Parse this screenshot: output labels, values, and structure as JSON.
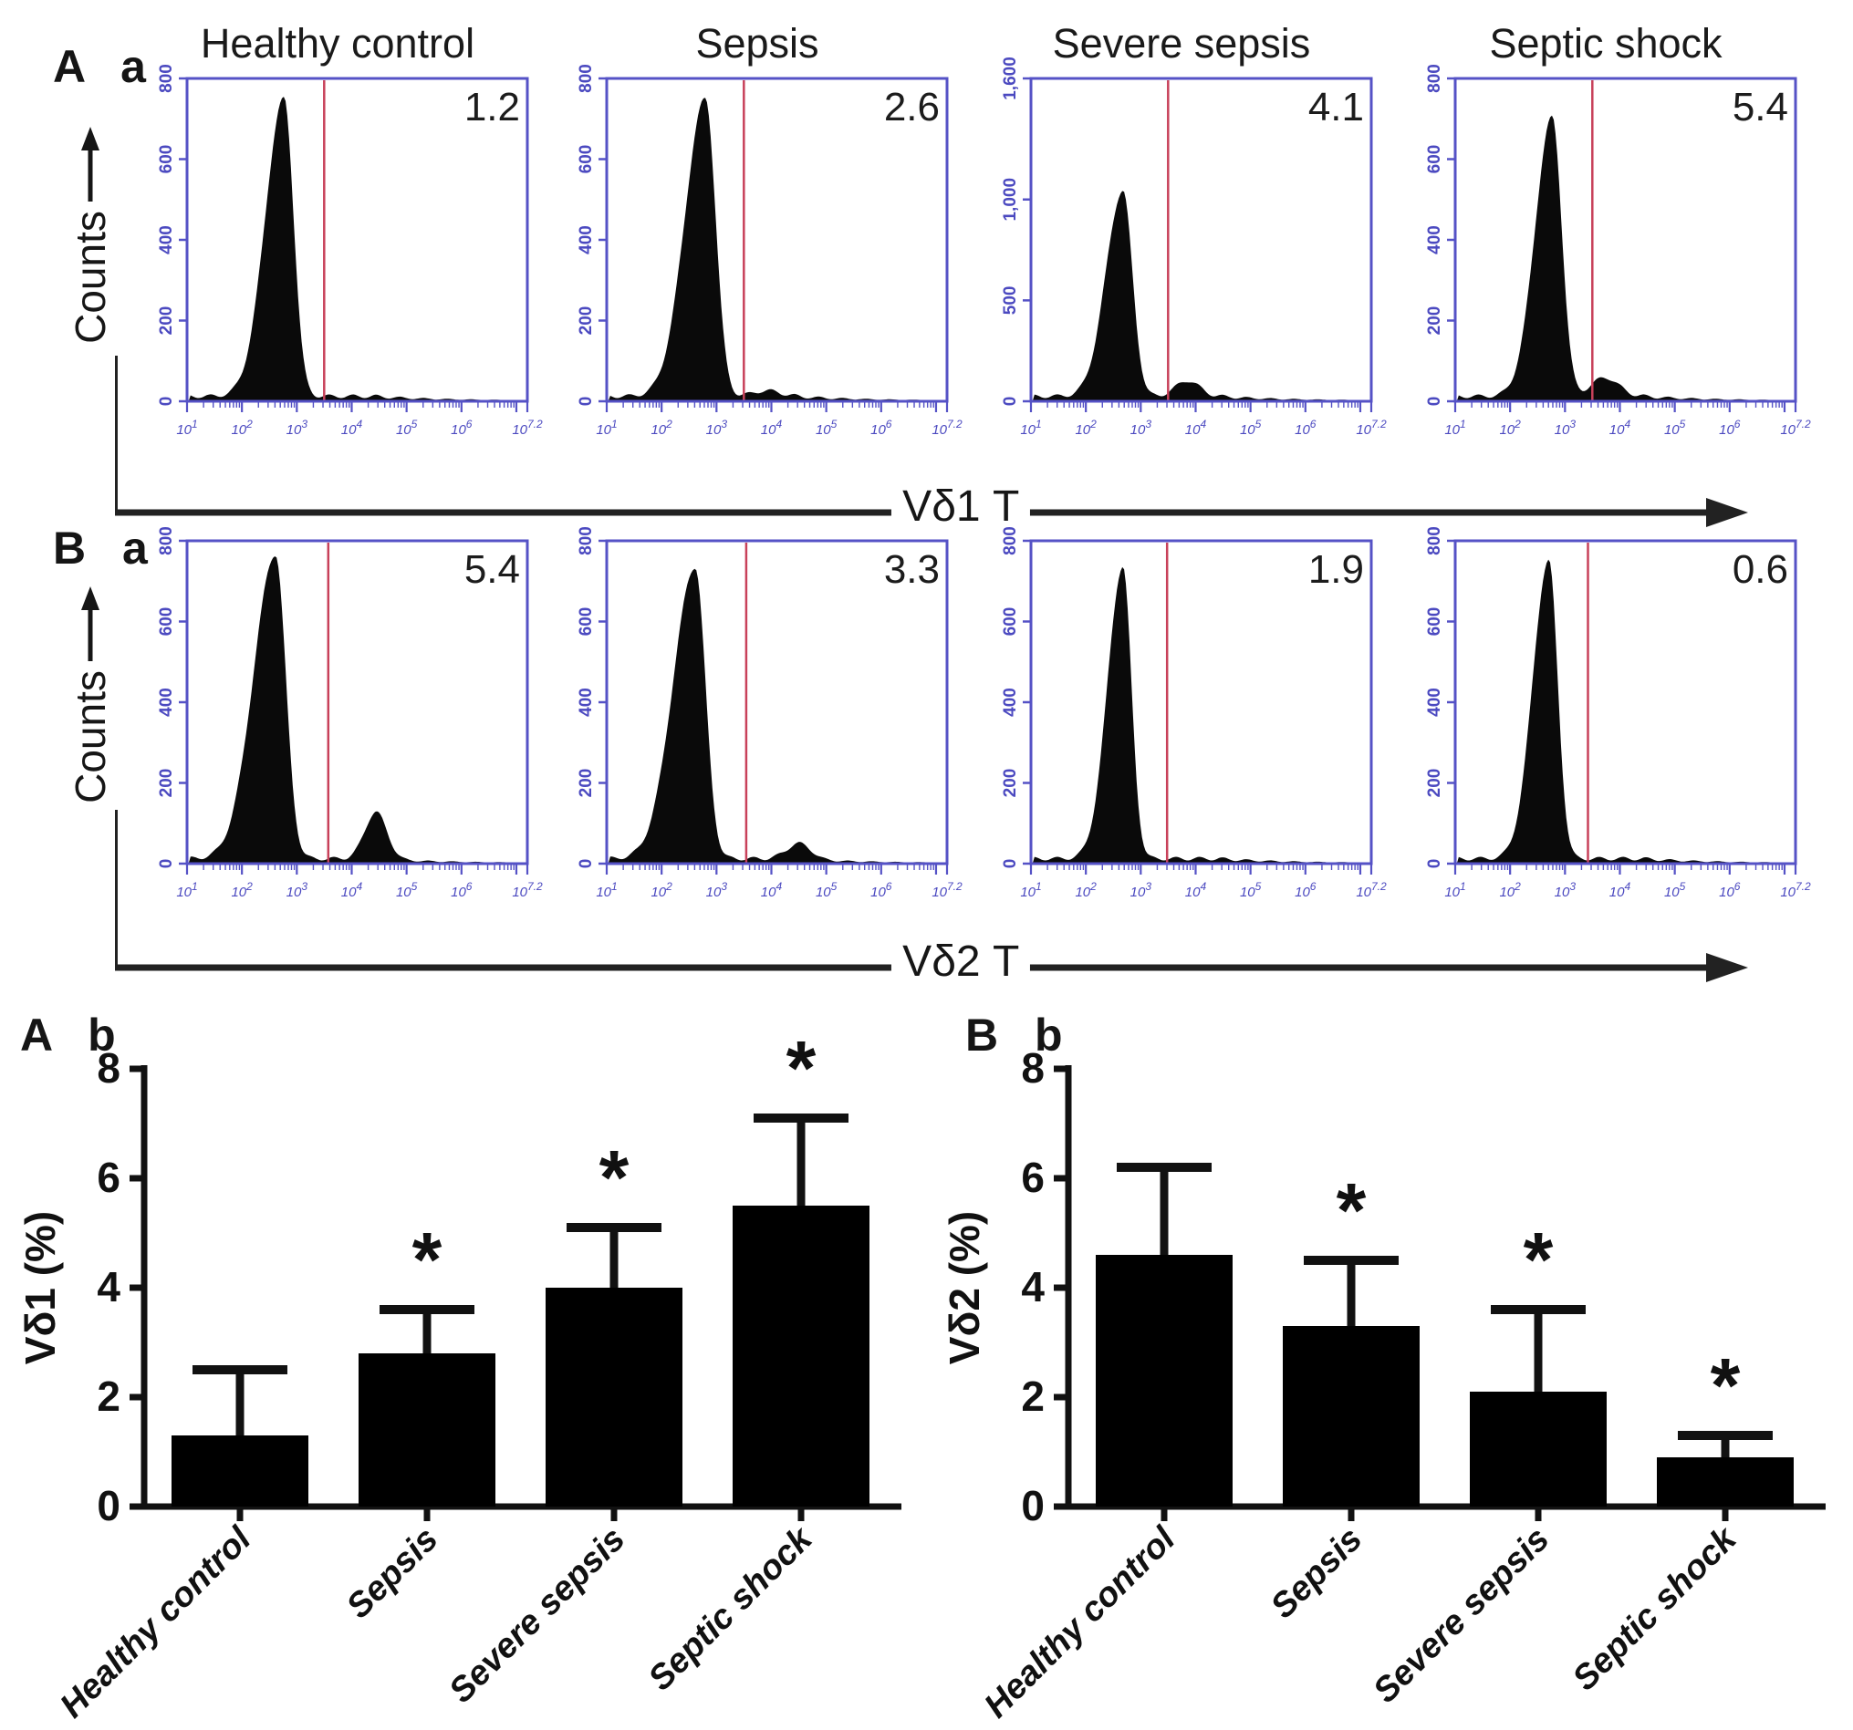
{
  "figure": {
    "section_a_label": "A a",
    "section_b_label": "B a",
    "bar_a_label": "A b",
    "bar_b_label": "B b",
    "counts_label": "Counts",
    "colors": {
      "frame_blue": "#5552c6",
      "tick_blue": "#4b49c0",
      "gate_red": "#c8415a",
      "hist_black": "#0a0a0a",
      "text_black": "#161616"
    }
  },
  "flow": {
    "x_axis_titles": [
      "Vδ1 T",
      "Vδ2 T"
    ],
    "x_tick_base": "10",
    "x_tick_exponents": [
      "1",
      "2",
      "3",
      "4",
      "5",
      "6",
      "7.2"
    ],
    "rows": [
      {
        "marker": "Vδ1",
        "show_titles": true,
        "panels": [
          {
            "title": "Healthy control",
            "value": "1.2",
            "ymax": 800,
            "ytick_labels": [
              "0",
              "200",
              "400",
              "600",
              "800"
            ],
            "ytick_values": [
              0,
              200,
              400,
              600,
              800
            ],
            "shape": {
              "c": 0.285,
              "sl": 0.055,
              "sr": 0.028,
              "h": 0.95,
              "gate": 0.403,
              "bump": null
            }
          },
          {
            "title": "Sepsis",
            "value": "2.6",
            "ymax": 800,
            "ytick_labels": [
              "0",
              "200",
              "400",
              "600",
              "800"
            ],
            "ytick_values": [
              0,
              200,
              400,
              600,
              800
            ],
            "shape": {
              "c": 0.29,
              "sl": 0.06,
              "sr": 0.03,
              "h": 0.95,
              "gate": 0.403,
              "bump": {
                "c": 0.47,
                "s": 0.04,
                "h": 0.018
              }
            }
          },
          {
            "title": "Severe sepsis",
            "value": "4.1",
            "ymax": 1600,
            "ytick_labels": [
              "0",
              "500",
              "1,000",
              "1,600"
            ],
            "ytick_values": [
              0,
              500,
              1000,
              1600
            ],
            "shape": {
              "c": 0.27,
              "sl": 0.05,
              "sr": 0.028,
              "h": 0.655,
              "gate": 0.403,
              "bump": {
                "c": 0.46,
                "s": 0.035,
                "h": 0.05
              }
            }
          },
          {
            "title": "Septic shock",
            "value": "5.4",
            "ymax": 800,
            "ytick_labels": [
              "0",
              "200",
              "400",
              "600",
              "800"
            ],
            "ytick_values": [
              0,
              200,
              400,
              600,
              800
            ],
            "shape": {
              "c": 0.285,
              "sl": 0.05,
              "sr": 0.028,
              "h": 0.89,
              "gate": 0.403,
              "bump": {
                "c": 0.44,
                "s": 0.04,
                "h": 0.06
              }
            }
          }
        ]
      },
      {
        "marker": "Vδ2",
        "show_titles": false,
        "panels": [
          {
            "value": "5.4",
            "ymax": 800,
            "ytick_labels": [
              "0",
              "200",
              "400",
              "600",
              "800"
            ],
            "ytick_values": [
              0,
              200,
              400,
              600,
              800
            ],
            "shape": {
              "c": 0.26,
              "sl": 0.065,
              "sr": 0.03,
              "h": 0.97,
              "gate": 0.415,
              "bump": {
                "c": 0.555,
                "s": 0.032,
                "h": 0.15
              }
            }
          },
          {
            "value": "3.3",
            "ymax": 800,
            "ytick_labels": [
              "0",
              "200",
              "400",
              "600",
              "800"
            ],
            "ytick_values": [
              0,
              200,
              400,
              600,
              800
            ],
            "shape": {
              "c": 0.26,
              "sl": 0.065,
              "sr": 0.03,
              "h": 0.93,
              "gate": 0.41,
              "bump": {
                "c": 0.565,
                "s": 0.035,
                "h": 0.05
              }
            }
          },
          {
            "value": "1.9",
            "ymax": 800,
            "ytick_labels": [
              "0",
              "200",
              "400",
              "600",
              "800"
            ],
            "ytick_values": [
              0,
              200,
              400,
              600,
              800
            ],
            "shape": {
              "c": 0.27,
              "sl": 0.045,
              "sr": 0.025,
              "h": 0.93,
              "gate": 0.4,
              "bump": null
            }
          },
          {
            "value": "0.6",
            "ymax": 800,
            "ytick_labels": [
              "0",
              "200",
              "400",
              "600",
              "800"
            ],
            "ytick_values": [
              0,
              200,
              400,
              600,
              800
            ],
            "shape": {
              "c": 0.275,
              "sl": 0.047,
              "sr": 0.026,
              "h": 0.95,
              "gate": 0.39,
              "bump": null
            }
          }
        ]
      }
    ]
  },
  "chart_data": [
    {
      "type": "bar",
      "panel_label": "A b",
      "ylabel": "Vδ1 (%)",
      "categories": [
        "Healthy control",
        "Sepsis",
        "Severe sepsis",
        "Septic shock"
      ],
      "values": [
        1.3,
        2.8,
        4.0,
        5.5
      ],
      "error_upper": [
        1.2,
        0.8,
        1.1,
        1.6
      ],
      "significance": [
        "",
        "*",
        "*",
        "*"
      ],
      "ylim": [
        0,
        8
      ],
      "yticks": [
        0,
        2,
        4,
        6,
        8
      ],
      "bar_color": "#000000",
      "grid": false,
      "legend": "none"
    },
    {
      "type": "bar",
      "panel_label": "B b",
      "ylabel": "Vδ2 (%)",
      "categories": [
        "Healthy control",
        "Sepsis",
        "Severe sepsis",
        "Septic shock"
      ],
      "values": [
        4.6,
        3.3,
        2.1,
        0.9
      ],
      "error_upper": [
        1.6,
        1.2,
        1.5,
        0.4
      ],
      "significance": [
        "",
        "*",
        "*",
        "*"
      ],
      "ylim": [
        0,
        8
      ],
      "yticks": [
        0,
        2,
        4,
        6,
        8
      ],
      "bar_color": "#000000",
      "grid": false,
      "legend": "none"
    },
    {
      "type": "histogram",
      "title": "Flow cytometry gated percentages",
      "categories": [
        "Healthy control",
        "Sepsis",
        "Severe sepsis",
        "Septic shock"
      ],
      "series": [
        {
          "name": "Vδ1 T (%)",
          "values": [
            1.2,
            2.6,
            4.1,
            5.4
          ]
        },
        {
          "name": "Vδ2 T (%)",
          "values": [
            5.4,
            3.3,
            1.9,
            0.6
          ]
        }
      ],
      "x_scale": "log10, decades 1 to 7.2",
      "counts_ymax_per_panel_vd1": [
        800,
        800,
        1600,
        800
      ],
      "counts_ymax_per_panel_vd2": [
        800,
        800,
        800,
        800
      ]
    }
  ]
}
